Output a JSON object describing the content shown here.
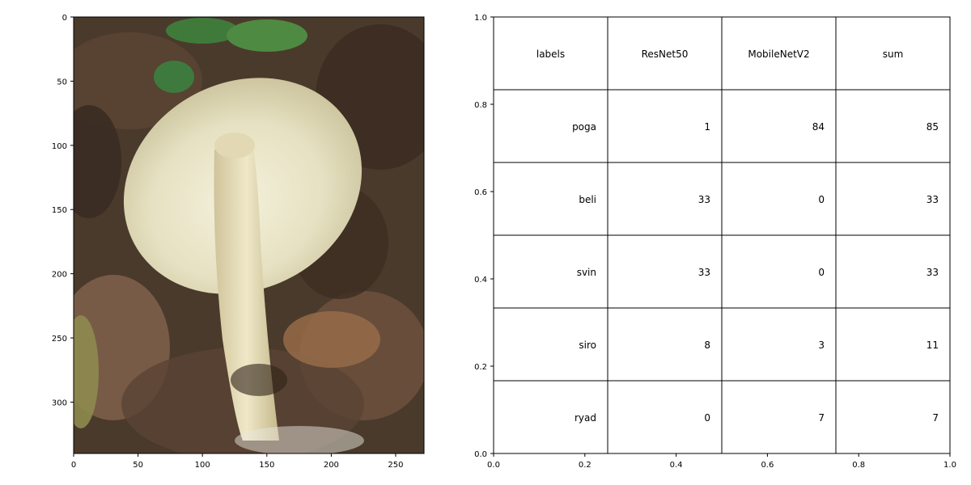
{
  "chart_data": [
    {
      "type": "image",
      "xlim": [
        0,
        272
      ],
      "ylim": [
        340,
        0
      ],
      "xticks": [
        0,
        50,
        100,
        150,
        200,
        250
      ],
      "yticks": [
        0,
        50,
        100,
        150,
        200,
        250,
        300
      ],
      "image_description": "photo of a pale mushroom with white gills and a creamy stem on brown forest leaf litter, green leaves at top"
    },
    {
      "type": "table",
      "xlim": [
        0,
        1
      ],
      "ylim": [
        0,
        1
      ],
      "xticks": [
        "0.0",
        "0.2",
        "0.4",
        "0.6",
        "0.8",
        "1.0"
      ],
      "yticks": [
        "0.0",
        "0.2",
        "0.4",
        "0.6",
        "0.8",
        "1.0"
      ],
      "columns": [
        "labels",
        "ResNet50",
        "MobileNetV2",
        "sum"
      ],
      "rows": [
        [
          "poga",
          "1",
          "84",
          "85"
        ],
        [
          "beli",
          "33",
          "0",
          "33"
        ],
        [
          "svin",
          "33",
          "0",
          "33"
        ],
        [
          "siro",
          "8",
          "3",
          "11"
        ],
        [
          "ryad",
          "0",
          "7",
          "7"
        ]
      ]
    }
  ]
}
